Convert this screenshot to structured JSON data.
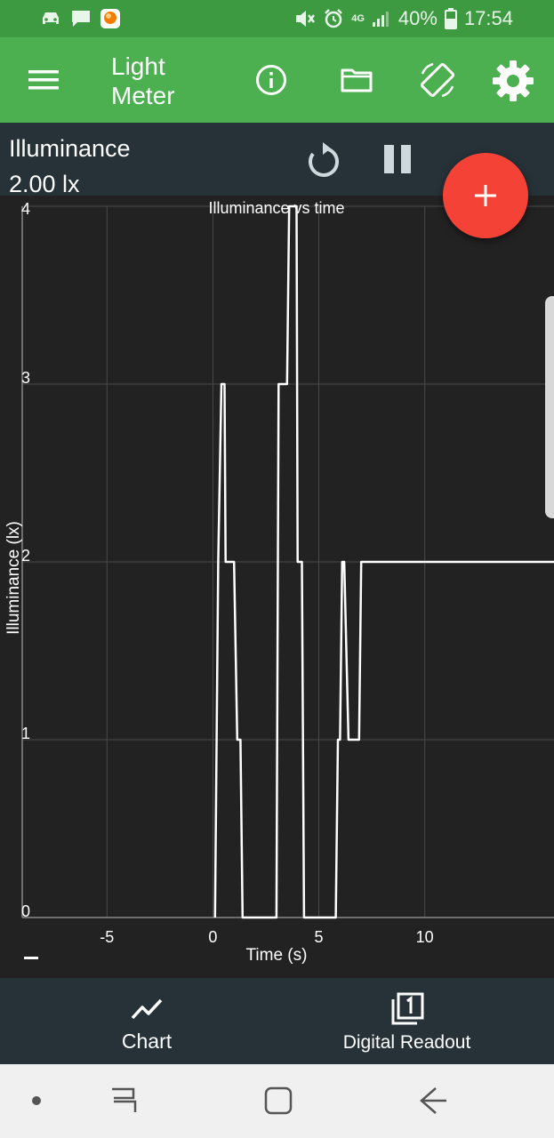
{
  "status_bar": {
    "signal_label": "4G",
    "battery": "40%",
    "time": "17:54",
    "icons": [
      "car-icon",
      "message-icon",
      "app-notification-icon",
      "mute-icon",
      "alarm-icon",
      "signal-icon",
      "battery-icon"
    ]
  },
  "app_bar": {
    "title": "Light Meter",
    "icons": [
      "menu-icon",
      "info-icon",
      "folder-icon",
      "screen-rotation-icon",
      "settings-icon"
    ]
  },
  "readout": {
    "name": "Illuminance",
    "value": "2.00 lx",
    "icons": [
      "reset-icon",
      "pause-icon"
    ]
  },
  "fab": {
    "icon": "add-icon"
  },
  "colors": {
    "status_bar": "#3d9a40",
    "app_bar": "#4caf50",
    "readout_bar": "#263238",
    "chart_bg": "#222222",
    "fab": "#f44336",
    "line": "#ffffff"
  },
  "chart_data": {
    "type": "line",
    "title": "Illuminance vs time",
    "xlabel": "Time (s)",
    "ylabel": "Illuminance (lx)",
    "xlim": [
      -9,
      16.1
    ],
    "ylim": [
      0,
      4
    ],
    "x_ticks": [
      -5,
      0,
      5,
      10
    ],
    "y_ticks": [
      0,
      1,
      2,
      3,
      4
    ],
    "x_tick_labels": [
      "-5",
      "0",
      "5",
      "10"
    ],
    "y_tick_labels": [
      "0",
      "1",
      "2",
      "3",
      "4"
    ],
    "grid": true,
    "series": [
      {
        "x": [
          0.1,
          0.25,
          0.4,
          0.55,
          0.6,
          1.0,
          1.15,
          1.3,
          1.4,
          3.0,
          3.1,
          3.5,
          3.6,
          3.7,
          3.95,
          4.0,
          4.2,
          4.3,
          5.8,
          5.9,
          6.0,
          6.1,
          6.2,
          6.4,
          6.6,
          6.9,
          7.0,
          16.1
        ],
        "y": [
          0,
          2,
          3,
          3,
          2,
          2,
          1,
          1,
          0,
          0,
          3,
          3,
          4,
          4,
          4,
          2,
          2,
          0,
          0,
          1,
          1,
          2,
          2,
          1,
          1,
          1,
          2,
          2
        ]
      }
    ]
  },
  "bottom_nav": {
    "items": [
      {
        "label": "Chart",
        "icon": "chart-icon"
      },
      {
        "label": "Digital Readout",
        "icon": "digital-readout-icon"
      }
    ]
  },
  "system_nav": {
    "icons": [
      "dot-icon",
      "recent-apps-icon",
      "home-icon",
      "back-icon"
    ]
  }
}
